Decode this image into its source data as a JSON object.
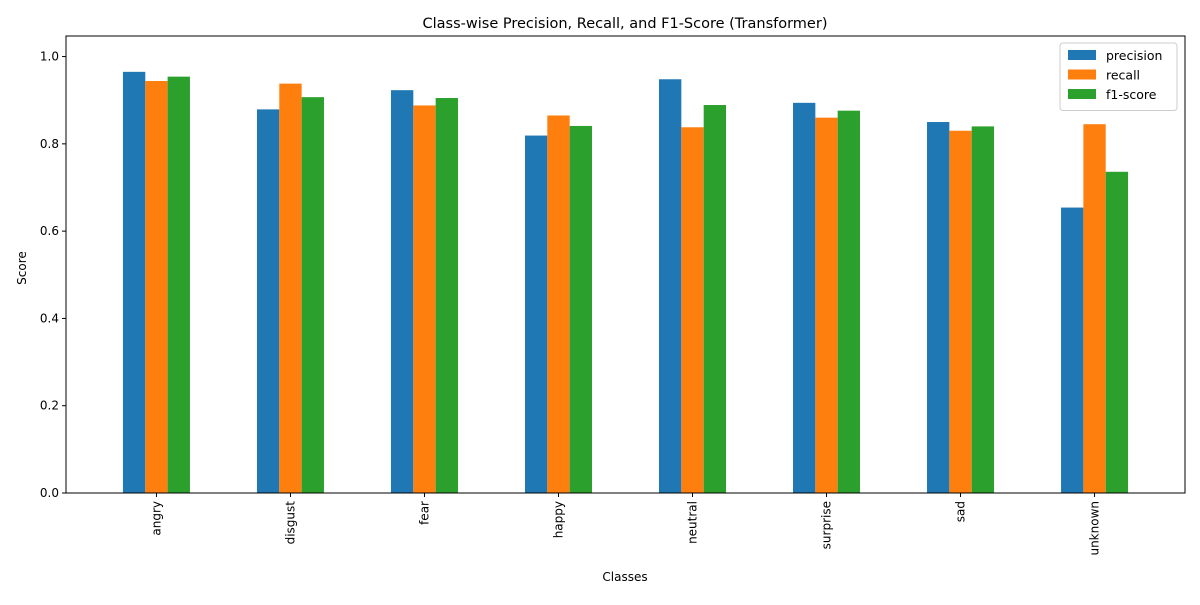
{
  "chart_data": {
    "type": "bar",
    "title": "Class-wise Precision, Recall, and F1-Score (Transformer)",
    "xlabel": "Classes",
    "ylabel": "Score",
    "categories": [
      "angry",
      "disgust",
      "fear",
      "happy",
      "neutral",
      "surprise",
      "sad",
      "unknown"
    ],
    "series": [
      {
        "name": "precision",
        "color": "#1f77b4",
        "values": [
          0.965,
          0.879,
          0.923,
          0.819,
          0.948,
          0.894,
          0.85,
          0.654
        ]
      },
      {
        "name": "recall",
        "color": "#ff7f0e",
        "values": [
          0.944,
          0.938,
          0.888,
          0.865,
          0.838,
          0.86,
          0.83,
          0.845
        ]
      },
      {
        "name": "f1-score",
        "color": "#2ca02c",
        "values": [
          0.954,
          0.907,
          0.905,
          0.841,
          0.889,
          0.876,
          0.84,
          0.736
        ]
      }
    ],
    "ylim": [
      0,
      1.0
    ],
    "yticks": [
      0.0,
      0.2,
      0.4,
      0.6,
      0.8,
      1.0
    ],
    "ytick_labels": [
      "0.0",
      "0.2",
      "0.4",
      "0.6",
      "0.8",
      "1.0"
    ],
    "xtick_rotation": "vertical",
    "grid": false,
    "legend_position": "top-right"
  }
}
